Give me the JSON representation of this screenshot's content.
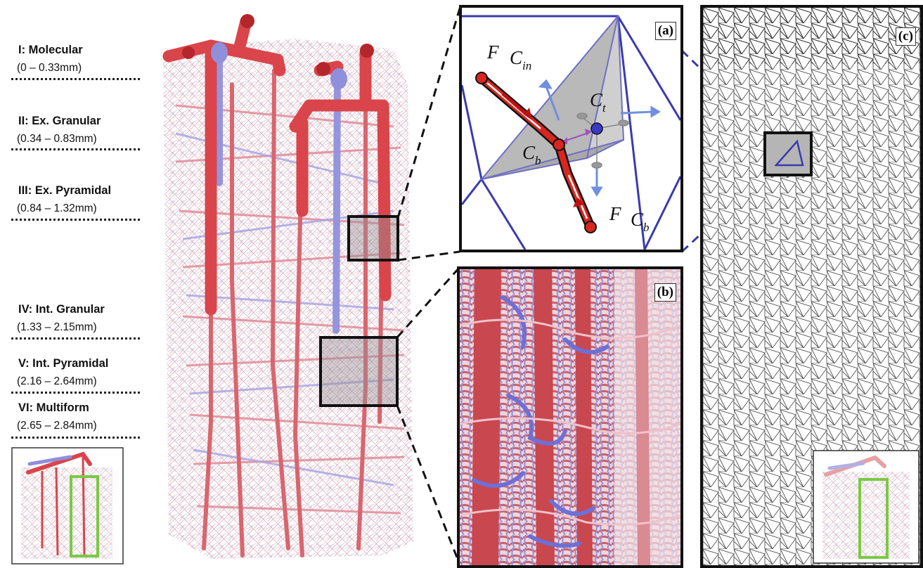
{
  "layers": [
    {
      "title": "I: Molecular",
      "range": "(0 – 0.33mm)"
    },
    {
      "title": "II: Ex. Granular",
      "range": "(0.34 – 0.83mm)"
    },
    {
      "title": "III: Ex. Pyramidal",
      "range": "(0.84 – 1.32mm)"
    },
    {
      "title": "IV: Int. Granular",
      "range": "(1.33 – 2.15mm)"
    },
    {
      "title": "V: Int. Pyramidal",
      "range": "(2.16 – 2.64mm)"
    },
    {
      "title": "VI: Multiform",
      "range": "(2.65 – 2.84mm)"
    }
  ],
  "panels": {
    "a": {
      "tag": "(a)",
      "label_f": "F",
      "label_c": "C",
      "sub_in": "in",
      "sub_t": "t",
      "sub_b": "b"
    },
    "b": {
      "tag": "(b)"
    },
    "c": {
      "tag": "(c)"
    }
  },
  "colors": {
    "artery": "#d9454a",
    "artery_dark": "#b3262b",
    "vein": "#8f8fdc",
    "capillary": "#e8a8b4",
    "mesh_blue": "#3a3ab0",
    "highlight_green": "#7ac943"
  }
}
